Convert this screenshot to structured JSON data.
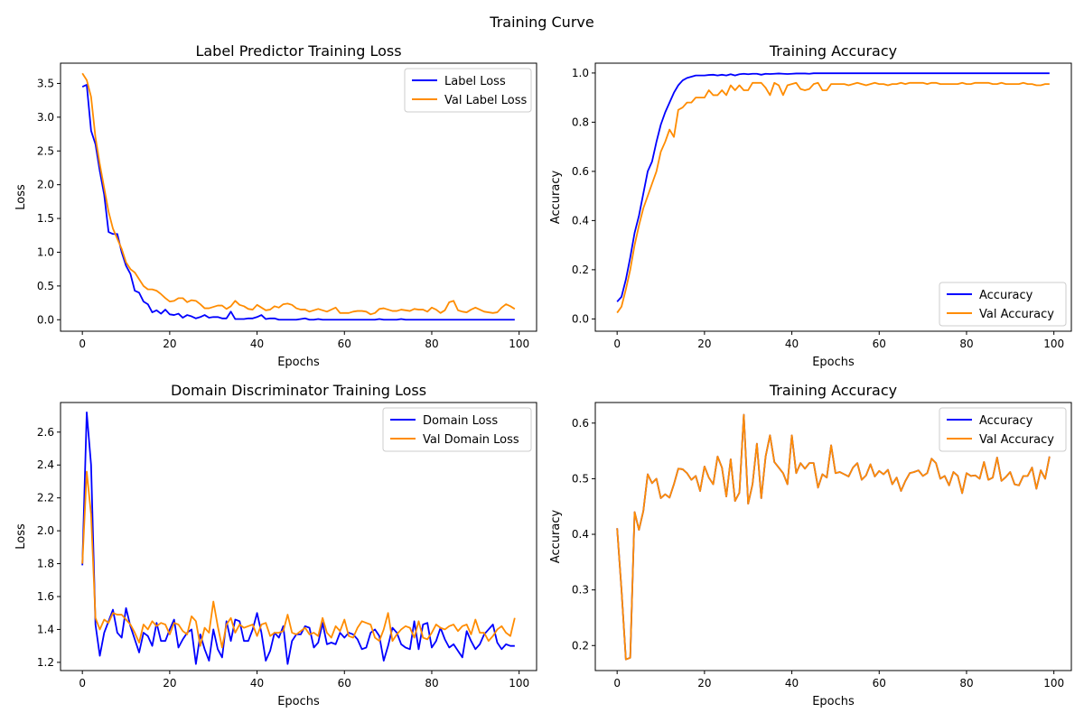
{
  "suptitle": "Training Curve",
  "colors": {
    "blue": "#0000ff",
    "orange": "#ff8c00"
  },
  "chart_data": [
    {
      "type": "line",
      "title": "Label Predictor Training Loss",
      "xlabel": "Epochs",
      "ylabel": "Loss",
      "xlim": [
        -5,
        104
      ],
      "ylim": [
        -0.17,
        3.8
      ],
      "xticks": [
        0,
        20,
        40,
        60,
        80,
        100
      ],
      "yticks": [
        0.0,
        0.5,
        1.0,
        1.5,
        2.0,
        2.5,
        3.0,
        3.5
      ],
      "ytick_labels": [
        "0.0",
        "0.5",
        "1.0",
        "1.5",
        "2.0",
        "2.5",
        "3.0",
        "3.5"
      ],
      "legend_loc": "top-right",
      "series": [
        {
          "name": "Label Loss",
          "color": "#0000ff",
          "values": [
            3.45,
            3.48,
            2.8,
            2.6,
            2.2,
            1.85,
            1.3,
            1.27,
            1.27,
            1.0,
            0.8,
            0.68,
            0.43,
            0.4,
            0.27,
            0.23,
            0.11,
            0.14,
            0.09,
            0.15,
            0.08,
            0.07,
            0.09,
            0.03,
            0.07,
            0.05,
            0.02,
            0.04,
            0.07,
            0.03,
            0.04,
            0.04,
            0.02,
            0.02,
            0.12,
            0.01,
            0.01,
            0.01,
            0.02,
            0.02,
            0.04,
            0.07,
            0.01,
            0.02,
            0.02,
            0.0,
            0.0,
            0.0,
            0.0,
            0.0,
            0.01,
            0.02,
            0.0,
            0.0,
            0.01,
            0.0,
            0.0,
            0.0,
            0.0,
            0.0,
            0.0,
            0.0,
            0.0,
            0.0,
            0.0,
            0.0,
            0.0,
            0.0,
            0.01,
            0.0,
            0.0,
            0.0,
            0.0,
            0.01,
            0.0,
            0.0,
            0.0,
            0.0,
            0.0,
            0.0,
            0.0,
            0.0,
            0.0,
            0.0,
            0.0,
            0.0,
            0.0,
            0.0,
            0.0,
            0.0,
            0.0,
            0.0,
            0.0,
            0.0,
            0.0,
            0.0,
            0.0,
            0.0,
            0.0,
            0.0
          ]
        },
        {
          "name": "Val Label Loss",
          "color": "#ff8c00",
          "values": [
            3.65,
            3.55,
            3.3,
            2.7,
            2.3,
            1.95,
            1.6,
            1.35,
            1.2,
            1.05,
            0.85,
            0.75,
            0.7,
            0.6,
            0.5,
            0.45,
            0.45,
            0.43,
            0.38,
            0.32,
            0.27,
            0.28,
            0.32,
            0.32,
            0.26,
            0.29,
            0.28,
            0.23,
            0.17,
            0.17,
            0.19,
            0.21,
            0.21,
            0.16,
            0.2,
            0.28,
            0.22,
            0.2,
            0.16,
            0.15,
            0.22,
            0.18,
            0.14,
            0.15,
            0.2,
            0.18,
            0.23,
            0.24,
            0.22,
            0.17,
            0.15,
            0.15,
            0.12,
            0.14,
            0.16,
            0.14,
            0.12,
            0.15,
            0.18,
            0.1,
            0.1,
            0.1,
            0.12,
            0.13,
            0.13,
            0.12,
            0.08,
            0.1,
            0.16,
            0.17,
            0.15,
            0.13,
            0.13,
            0.15,
            0.14,
            0.13,
            0.16,
            0.15,
            0.15,
            0.12,
            0.18,
            0.15,
            0.1,
            0.14,
            0.26,
            0.28,
            0.14,
            0.12,
            0.11,
            0.15,
            0.18,
            0.15,
            0.12,
            0.11,
            0.1,
            0.11,
            0.18,
            0.23,
            0.2,
            0.16
          ]
        }
      ]
    },
    {
      "type": "line",
      "title": "Training Accuracy",
      "xlabel": "Epochs",
      "ylabel": "Accuracy",
      "xlim": [
        -5,
        104
      ],
      "ylim": [
        -0.05,
        1.04
      ],
      "xticks": [
        0,
        20,
        40,
        60,
        80,
        100
      ],
      "yticks": [
        0.0,
        0.2,
        0.4,
        0.6,
        0.8,
        1.0
      ],
      "ytick_labels": [
        "0.0",
        "0.2",
        "0.4",
        "0.6",
        "0.8",
        "1.0"
      ],
      "legend_loc": "bottom-right",
      "series": [
        {
          "name": "Accuracy",
          "color": "#0000ff",
          "values": [
            0.07,
            0.09,
            0.16,
            0.25,
            0.35,
            0.42,
            0.51,
            0.6,
            0.64,
            0.72,
            0.79,
            0.84,
            0.88,
            0.92,
            0.95,
            0.97,
            0.98,
            0.985,
            0.99,
            0.99,
            0.99,
            0.992,
            0.993,
            0.99,
            0.993,
            0.99,
            0.995,
            0.99,
            0.995,
            0.997,
            0.995,
            0.997,
            0.997,
            0.993,
            0.997,
            0.996,
            0.997,
            0.998,
            0.997,
            0.996,
            0.997,
            0.998,
            0.998,
            0.998,
            0.997,
            0.999,
            0.999,
            0.999,
            0.999,
            0.999,
            0.999,
            0.999,
            0.999,
            0.999,
            0.999,
            0.999,
            0.999,
            0.999,
            0.999,
            0.999,
            0.999,
            0.999,
            0.999,
            0.999,
            0.999,
            0.999,
            0.999,
            0.999,
            0.999,
            0.999,
            0.999,
            0.999,
            0.999,
            0.999,
            0.999,
            0.999,
            0.999,
            0.999,
            0.999,
            0.999,
            0.999,
            0.999,
            0.999,
            0.999,
            0.999,
            0.999,
            0.999,
            0.999,
            0.999,
            0.999,
            0.999,
            0.999,
            0.999,
            0.999,
            0.999,
            0.999,
            0.999,
            0.999,
            0.999,
            0.999
          ]
        },
        {
          "name": "Val Accuracy",
          "color": "#ff8c00",
          "values": [
            0.025,
            0.05,
            0.12,
            0.2,
            0.3,
            0.38,
            0.45,
            0.5,
            0.55,
            0.6,
            0.68,
            0.72,
            0.77,
            0.74,
            0.85,
            0.86,
            0.88,
            0.88,
            0.9,
            0.9,
            0.9,
            0.93,
            0.91,
            0.91,
            0.93,
            0.91,
            0.95,
            0.93,
            0.95,
            0.93,
            0.93,
            0.96,
            0.96,
            0.96,
            0.94,
            0.91,
            0.96,
            0.95,
            0.91,
            0.95,
            0.955,
            0.96,
            0.935,
            0.93,
            0.935,
            0.955,
            0.96,
            0.93,
            0.93,
            0.955,
            0.955,
            0.955,
            0.955,
            0.95,
            0.955,
            0.96,
            0.955,
            0.95,
            0.955,
            0.96,
            0.955,
            0.955,
            0.95,
            0.955,
            0.955,
            0.96,
            0.955,
            0.96,
            0.96,
            0.96,
            0.96,
            0.955,
            0.96,
            0.96,
            0.955,
            0.955,
            0.955,
            0.955,
            0.955,
            0.96,
            0.955,
            0.955,
            0.96,
            0.96,
            0.96,
            0.96,
            0.955,
            0.955,
            0.96,
            0.955,
            0.955,
            0.955,
            0.955,
            0.96,
            0.955,
            0.955,
            0.95,
            0.95,
            0.955,
            0.955
          ]
        }
      ]
    },
    {
      "type": "line",
      "title": "Domain Discriminator Training Loss",
      "xlabel": "Epochs",
      "ylabel": "Loss",
      "xlim": [
        -5,
        104
      ],
      "ylim": [
        1.15,
        2.78
      ],
      "xticks": [
        0,
        20,
        40,
        60,
        80,
        100
      ],
      "yticks": [
        1.2,
        1.4,
        1.6,
        1.8,
        2.0,
        2.2,
        2.4,
        2.6
      ],
      "ytick_labels": [
        "1.2",
        "1.4",
        "1.6",
        "1.8",
        "2.0",
        "2.2",
        "2.4",
        "2.6"
      ],
      "legend_loc": "top-right",
      "series": [
        {
          "name": "Domain Loss",
          "color": "#0000ff",
          "values": [
            1.79,
            2.72,
            2.4,
            1.43,
            1.24,
            1.38,
            1.45,
            1.52,
            1.38,
            1.35,
            1.53,
            1.42,
            1.34,
            1.26,
            1.38,
            1.36,
            1.3,
            1.44,
            1.33,
            1.33,
            1.4,
            1.46,
            1.29,
            1.34,
            1.38,
            1.4,
            1.19,
            1.37,
            1.28,
            1.21,
            1.4,
            1.28,
            1.23,
            1.45,
            1.33,
            1.46,
            1.45,
            1.33,
            1.33,
            1.4,
            1.5,
            1.38,
            1.21,
            1.27,
            1.38,
            1.35,
            1.42,
            1.19,
            1.33,
            1.37,
            1.37,
            1.42,
            1.41,
            1.29,
            1.32,
            1.44,
            1.31,
            1.32,
            1.31,
            1.38,
            1.35,
            1.38,
            1.37,
            1.34,
            1.28,
            1.29,
            1.38,
            1.4,
            1.36,
            1.21,
            1.3,
            1.41,
            1.38,
            1.31,
            1.29,
            1.28,
            1.45,
            1.28,
            1.43,
            1.44,
            1.29,
            1.33,
            1.41,
            1.34,
            1.29,
            1.31,
            1.27,
            1.23,
            1.39,
            1.33,
            1.28,
            1.31,
            1.37,
            1.4,
            1.43,
            1.32,
            1.28,
            1.31,
            1.3,
            1.3
          ]
        },
        {
          "name": "Val Domain Loss",
          "color": "#ff8c00",
          "values": [
            1.8,
            2.36,
            2.1,
            1.47,
            1.4,
            1.46,
            1.44,
            1.5,
            1.49,
            1.49,
            1.46,
            1.43,
            1.38,
            1.32,
            1.43,
            1.4,
            1.45,
            1.42,
            1.44,
            1.43,
            1.37,
            1.44,
            1.43,
            1.39,
            1.37,
            1.48,
            1.45,
            1.3,
            1.41,
            1.38,
            1.57,
            1.42,
            1.29,
            1.43,
            1.47,
            1.38,
            1.43,
            1.41,
            1.42,
            1.43,
            1.36,
            1.43,
            1.44,
            1.36,
            1.38,
            1.38,
            1.39,
            1.49,
            1.38,
            1.37,
            1.39,
            1.41,
            1.37,
            1.38,
            1.36,
            1.47,
            1.38,
            1.35,
            1.42,
            1.39,
            1.46,
            1.36,
            1.35,
            1.41,
            1.45,
            1.44,
            1.43,
            1.35,
            1.33,
            1.4,
            1.5,
            1.33,
            1.37,
            1.4,
            1.42,
            1.41,
            1.35,
            1.45,
            1.35,
            1.34,
            1.38,
            1.43,
            1.41,
            1.4,
            1.42,
            1.43,
            1.39,
            1.42,
            1.43,
            1.37,
            1.46,
            1.38,
            1.38,
            1.33,
            1.36,
            1.4,
            1.42,
            1.38,
            1.36,
            1.47
          ]
        }
      ]
    },
    {
      "type": "line",
      "title": "Training Accuracy",
      "xlabel": "Epochs",
      "ylabel": "Accuracy",
      "xlim": [
        -5,
        104
      ],
      "ylim": [
        0.155,
        0.637
      ],
      "xticks": [
        0,
        20,
        40,
        60,
        80,
        100
      ],
      "yticks": [
        0.2,
        0.3,
        0.4,
        0.5,
        0.6
      ],
      "ytick_labels": [
        "0.2",
        "0.3",
        "0.4",
        "0.5",
        "0.6"
      ],
      "legend_loc": "top-right",
      "series": [
        {
          "name": "Accuracy",
          "color": "#0000ff",
          "values": [
            0.411,
            0.3,
            0.175,
            0.178,
            0.44,
            0.408,
            0.442,
            0.508,
            0.492,
            0.5,
            0.465,
            0.472,
            0.466,
            0.49,
            0.518,
            0.517,
            0.51,
            0.498,
            0.505,
            0.478,
            0.522,
            0.502,
            0.49,
            0.54,
            0.52,
            0.468,
            0.535,
            0.46,
            0.475,
            0.615,
            0.455,
            0.49,
            0.563,
            0.465,
            0.54,
            0.578,
            0.53,
            0.52,
            0.51,
            0.49,
            0.578,
            0.51,
            0.528,
            0.518,
            0.528,
            0.528,
            0.484,
            0.508,
            0.502,
            0.56,
            0.51,
            0.512,
            0.508,
            0.504,
            0.52,
            0.528,
            0.498,
            0.506,
            0.526,
            0.504,
            0.514,
            0.508,
            0.516,
            0.49,
            0.502,
            0.478,
            0.496,
            0.51,
            0.512,
            0.515,
            0.505,
            0.51,
            0.536,
            0.528,
            0.5,
            0.505,
            0.488,
            0.512,
            0.505,
            0.474,
            0.51,
            0.505,
            0.506,
            0.5,
            0.53,
            0.498,
            0.502,
            0.538,
            0.496,
            0.503,
            0.512,
            0.49,
            0.488,
            0.505,
            0.505,
            0.52,
            0.482,
            0.515,
            0.5,
            0.54
          ]
        },
        {
          "name": "Val Accuracy",
          "color": "#ff8c00",
          "values": [
            0.411,
            0.3,
            0.175,
            0.178,
            0.44,
            0.408,
            0.442,
            0.508,
            0.492,
            0.5,
            0.465,
            0.472,
            0.466,
            0.49,
            0.518,
            0.517,
            0.51,
            0.498,
            0.505,
            0.478,
            0.522,
            0.502,
            0.49,
            0.54,
            0.52,
            0.468,
            0.535,
            0.46,
            0.475,
            0.615,
            0.455,
            0.49,
            0.563,
            0.465,
            0.54,
            0.578,
            0.53,
            0.52,
            0.51,
            0.49,
            0.578,
            0.51,
            0.528,
            0.518,
            0.528,
            0.528,
            0.484,
            0.508,
            0.502,
            0.56,
            0.51,
            0.512,
            0.508,
            0.504,
            0.52,
            0.528,
            0.498,
            0.506,
            0.526,
            0.504,
            0.514,
            0.508,
            0.516,
            0.49,
            0.502,
            0.478,
            0.496,
            0.51,
            0.512,
            0.515,
            0.505,
            0.51,
            0.536,
            0.528,
            0.5,
            0.505,
            0.488,
            0.512,
            0.505,
            0.474,
            0.51,
            0.505,
            0.506,
            0.5,
            0.53,
            0.498,
            0.502,
            0.538,
            0.496,
            0.503,
            0.512,
            0.49,
            0.488,
            0.505,
            0.505,
            0.52,
            0.482,
            0.515,
            0.5,
            0.54
          ]
        }
      ]
    }
  ]
}
